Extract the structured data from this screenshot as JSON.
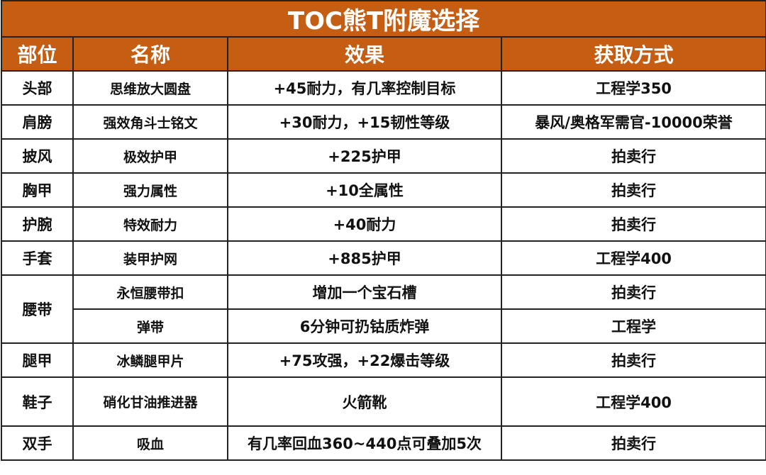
{
  "title": "TOC熊T附魔选择",
  "colors": {
    "header_bg": "#c55d13",
    "header_text": "#ffffff"
  },
  "headers": [
    "部位",
    "名称",
    "效果",
    "获取方式"
  ],
  "rows": [
    {
      "slot": "头部",
      "name": "思维放大圆盘",
      "effect": "+45耐力，有几率控制目标",
      "source": "工程学350"
    },
    {
      "slot": "肩膀",
      "name": "强效角斗士铭文",
      "effect": "+30耐力，+15韧性等级",
      "source": "暴风/奥格军需官-10000荣誉"
    },
    {
      "slot": "披风",
      "name": "极效护甲",
      "effect": "+225护甲",
      "source": "拍卖行"
    },
    {
      "slot": "胸甲",
      "name": "强力属性",
      "effect": "+10全属性",
      "source": "拍卖行"
    },
    {
      "slot": "护腕",
      "name": "特效耐力",
      "effect": "+40耐力",
      "source": "拍卖行"
    },
    {
      "slot": "手套",
      "name": "装甲护网",
      "effect": "+885护甲",
      "source": "工程学400"
    },
    {
      "slot": "腰带",
      "name": "永恒腰带扣",
      "effect": "增加一个宝石槽",
      "source": "拍卖行"
    },
    {
      "slot": "",
      "name": "弹带",
      "effect": "6分钟可扔钴质炸弹",
      "source": "工程学"
    },
    {
      "slot": "腿甲",
      "name": "冰鳞腿甲片",
      "effect": "+75攻强，+22爆击等级",
      "source": "拍卖行"
    },
    {
      "slot": "鞋子",
      "name": "硝化甘油推进器",
      "effect": "火箭靴",
      "source": "工程学400"
    },
    {
      "slot": "双手",
      "name": "吸血",
      "effect": "有几率回血360~440点可叠加5次",
      "source": "拍卖行"
    }
  ]
}
